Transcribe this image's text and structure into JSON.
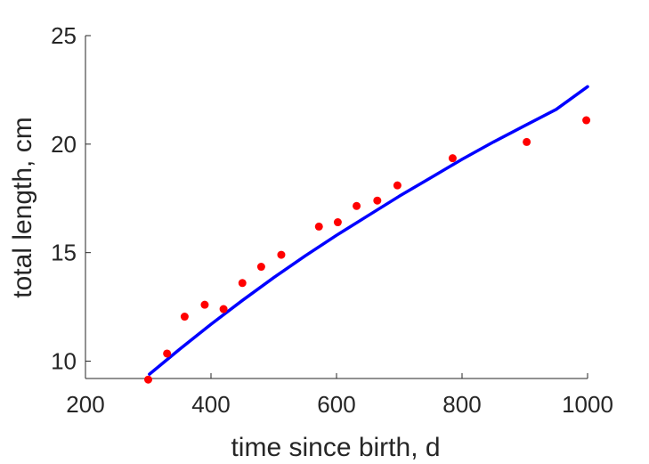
{
  "chart_data": {
    "type": "scatter",
    "xlabel": "time since birth, d",
    "ylabel": "total length, cm",
    "xlim": [
      200,
      1000
    ],
    "ylim": [
      9.2,
      25
    ],
    "xticks": [
      200,
      400,
      600,
      800,
      1000
    ],
    "yticks": [
      10,
      15,
      20,
      25
    ],
    "grid": false,
    "legend": "none",
    "series": [
      {
        "kind": "points",
        "color": "#ff0000",
        "x": [
          300,
          330,
          358,
          390,
          420,
          450,
          480,
          512,
          572,
          602,
          632,
          665,
          697,
          785,
          903,
          998
        ],
        "y": [
          9.15,
          10.35,
          12.05,
          12.6,
          12.4,
          13.6,
          14.35,
          14.9,
          16.2,
          16.4,
          17.15,
          17.4,
          18.1,
          19.35,
          20.1,
          21.1
        ]
      },
      {
        "kind": "line",
        "color": "#0000ff",
        "x": [
          302,
          350,
          400,
          450,
          500,
          550,
          600,
          650,
          700,
          750,
          800,
          850,
          900,
          950,
          1000
        ],
        "y": [
          9.4,
          10.55,
          11.7,
          12.8,
          13.85,
          14.85,
          15.8,
          16.7,
          17.6,
          18.45,
          19.3,
          20.1,
          20.85,
          21.6,
          22.65
        ]
      }
    ]
  }
}
